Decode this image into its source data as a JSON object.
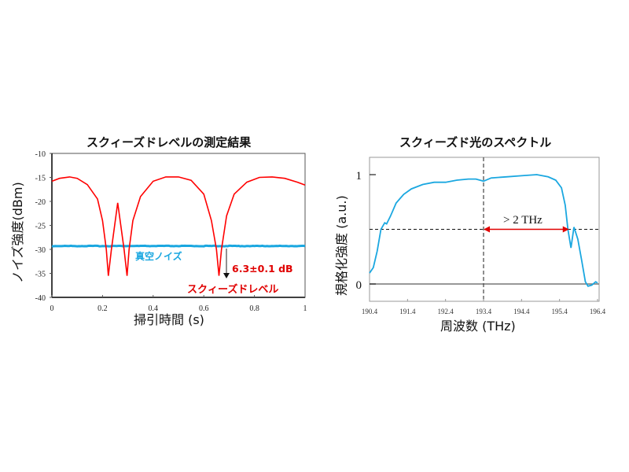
{
  "chart_data": [
    {
      "type": "line",
      "title": "スクィーズドレベルの測定結果",
      "xlabel": "掃引時間 (s)",
      "ylabel": "ノイズ強度(dBm)",
      "xlim": [
        0,
        1
      ],
      "ylim": [
        -40,
        -10
      ],
      "x_ticks": [
        "0",
        "0.2",
        "0.4",
        "0.6",
        "0.8",
        "1"
      ],
      "y_ticks": [
        "-10",
        "-15",
        "-20",
        "-25",
        "-30",
        "-35",
        "-40"
      ],
      "grid": false,
      "series": [
        {
          "name": "スクィーズドレベル",
          "color": "#ff0000",
          "x": [
            0,
            0.03,
            0.07,
            0.1,
            0.14,
            0.18,
            0.2,
            0.215,
            0.223,
            0.235,
            0.26,
            0.285,
            0.297,
            0.305,
            0.32,
            0.35,
            0.4,
            0.45,
            0.5,
            0.55,
            0.6,
            0.63,
            0.65,
            0.66,
            0.67,
            0.69,
            0.72,
            0.77,
            0.82,
            0.87,
            0.92,
            0.97,
            1.0
          ],
          "y": [
            -15.8,
            -15.2,
            -14.9,
            -15.2,
            -16.5,
            -19.5,
            -24,
            -30,
            -35.5,
            -30,
            -20.3,
            -30,
            -35.5,
            -30,
            -24,
            -19,
            -15.8,
            -14.9,
            -14.9,
            -15.6,
            -18.5,
            -24,
            -30,
            -35.5,
            -30,
            -23,
            -18.5,
            -16,
            -15,
            -14.9,
            -15.2,
            -16,
            -16.6
          ]
        },
        {
          "name": "真空ノイズ",
          "color": "#1aa7e0",
          "x": [
            0,
            1
          ],
          "y": [
            -29.3,
            -29.3
          ]
        }
      ],
      "annotations": [
        {
          "text": "真空ノイズ",
          "color": "#1aa7e0"
        },
        {
          "text": "6.3±0.1 dB",
          "color": "#e00000"
        },
        {
          "text": "スクィーズドレベル",
          "color": "#e00000"
        }
      ]
    },
    {
      "type": "line",
      "title": "スクィーズド光のスペクトル",
      "xlabel": "周波数 (THz)",
      "ylabel": "規格化強度 (a.u.)",
      "xlim": [
        190.4,
        196.4
      ],
      "ylim": [
        -0.16,
        1.06
      ],
      "x_ticks": [
        "190.4",
        "191.4",
        "192.4",
        "193.4",
        "194.4",
        "195.4",
        "196.4"
      ],
      "y_ticks": [
        "0",
        "1"
      ],
      "grid": false,
      "series": [
        {
          "name": "スペクトル",
          "color": "#1aa7e0",
          "x": [
            190.4,
            190.5,
            190.6,
            190.7,
            190.8,
            190.85,
            190.95,
            191.1,
            191.3,
            191.5,
            191.8,
            192.1,
            192.4,
            192.7,
            193.0,
            193.2,
            193.4,
            193.6,
            194.0,
            194.4,
            194.8,
            195.1,
            195.3,
            195.45,
            195.55,
            195.62,
            195.7,
            195.78,
            195.88,
            195.98,
            196.08,
            196.15,
            196.25,
            196.35,
            196.4
          ],
          "y": [
            0.1,
            0.15,
            0.3,
            0.5,
            0.56,
            0.55,
            0.62,
            0.74,
            0.82,
            0.87,
            0.91,
            0.93,
            0.93,
            0.95,
            0.96,
            0.96,
            0.94,
            0.97,
            0.98,
            0.99,
            1.0,
            0.98,
            0.95,
            0.88,
            0.72,
            0.5,
            0.33,
            0.52,
            0.41,
            0.22,
            0.02,
            -0.02,
            -0.01,
            0.02,
            0.01
          ]
        }
      ],
      "reference_lines": [
        {
          "type": "horizontal",
          "y": 0.5,
          "style": "dashed"
        },
        {
          "type": "horizontal",
          "y": 0,
          "style": "solid"
        },
        {
          "type": "vertical",
          "x": 193.4,
          "style": "dashed"
        }
      ],
      "annotations": [
        {
          "text": "> 2 THz",
          "from": 193.4,
          "to": 195.65,
          "y": 0.5,
          "color": "#e00000"
        }
      ]
    }
  ]
}
